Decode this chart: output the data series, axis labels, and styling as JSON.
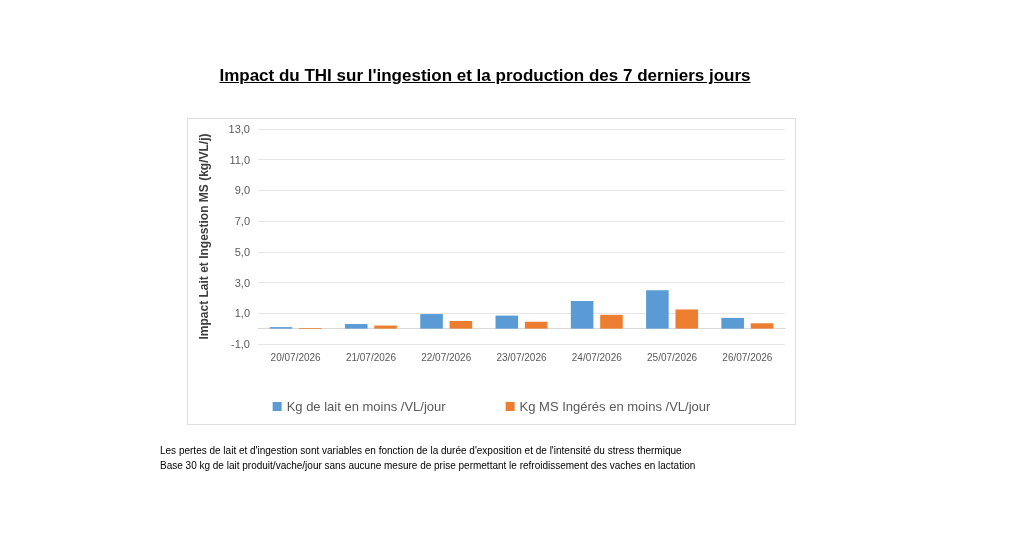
{
  "chart_data": {
    "type": "bar",
    "title": "Impact du THI sur l'ingestion et la production des 7 derniers jours",
    "ylabel": "Impact Lait et Ingestion MS (kg/VL/j)",
    "categories": [
      "20/07/2026",
      "21/07/2026",
      "22/07/2026",
      "23/07/2026",
      "24/07/2026",
      "25/07/2026",
      "26/07/2026"
    ],
    "series": [
      {
        "name": "Kg de lait en moins /VL/jour",
        "color": "#5b9bd5",
        "values": [
          0.1,
          0.3,
          0.95,
          0.85,
          1.8,
          2.5,
          0.7
        ]
      },
      {
        "name": "Kg MS Ingérés en moins /VL/jour",
        "color": "#ed7d31",
        "values": [
          0.05,
          0.2,
          0.5,
          0.45,
          0.9,
          1.25,
          0.35
        ]
      }
    ],
    "ylim": [
      -1,
      13
    ],
    "yticks": [
      {
        "value": -1,
        "label": "-1,0"
      },
      {
        "value": 1,
        "label": "1,0"
      },
      {
        "value": 3,
        "label": "3,0"
      },
      {
        "value": 5,
        "label": "5,0"
      },
      {
        "value": 7,
        "label": "7,0"
      },
      {
        "value": 9,
        "label": "9,0"
      },
      {
        "value": 11,
        "label": "11,0"
      },
      {
        "value": 13,
        "label": "13,0"
      }
    ],
    "grid": "y",
    "legend": "bottom",
    "annotations": [
      "Les pertes de lait et d'ingestion sont variables en fonction de la durée d'exposition et de l'intensité du stress thermique",
      "Base 30 kg de lait produit/vache/jour sans aucune mesure de prise permettant le refroidissement des vaches en lactation"
    ]
  }
}
